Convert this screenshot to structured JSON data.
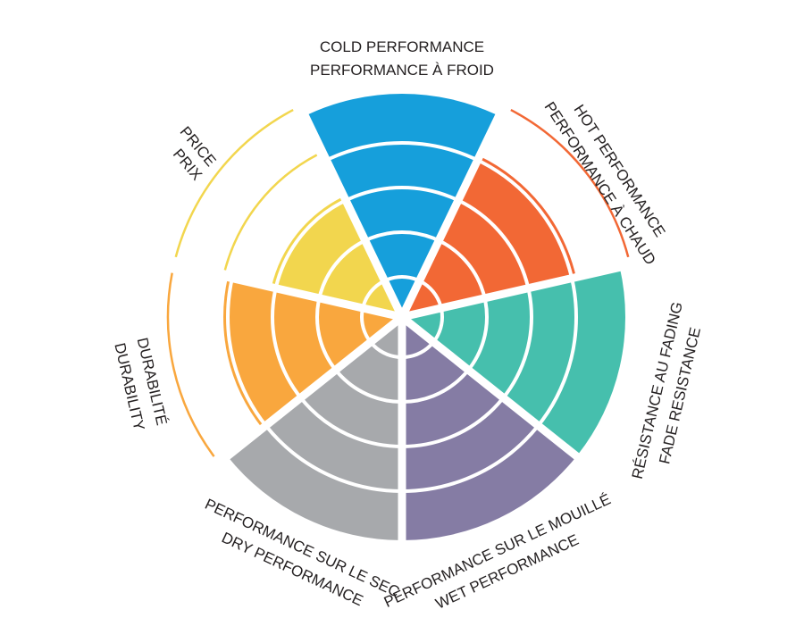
{
  "chart_data": {
    "type": "polar-area",
    "scale": [
      0,
      5
    ],
    "rings": 5,
    "grid": true,
    "categories": [
      {
        "label_en": "COLD PERFORMANCE",
        "label_fr": "PERFORMANCE À FROID",
        "value": 5,
        "color": "#169fdb"
      },
      {
        "label_en": "HOT PERFORMANCE",
        "label_fr": "PERFORMANCE À CHAUD",
        "value": 4,
        "color": "#f26835",
        "outline_levels": [
          5
        ]
      },
      {
        "label_en": "FADE RESISTANCE",
        "label_fr": "RÉSISTANCE AU FADING",
        "value": 5,
        "color": "#46bfad"
      },
      {
        "label_en": "WET PERFORMANCE",
        "label_fr": "PERFORMANCE SUR LE MOUILLÉ",
        "value": 5,
        "color": "#857ca4"
      },
      {
        "label_en": "DRY PERFORMANCE",
        "label_fr": "PERFORMANCE SUR LE SEC",
        "value": 5,
        "color": "#a7a9ac"
      },
      {
        "label_en": "DURABILITY",
        "label_fr": "DURABILITÉ",
        "value": 4,
        "color": "#f9a73e",
        "outline_levels": [
          5
        ]
      },
      {
        "label_en": "PRICE",
        "label_fr": "PRIX",
        "value": 3,
        "color": "#f2d64e",
        "outline_levels": [
          4,
          5
        ]
      }
    ]
  }
}
